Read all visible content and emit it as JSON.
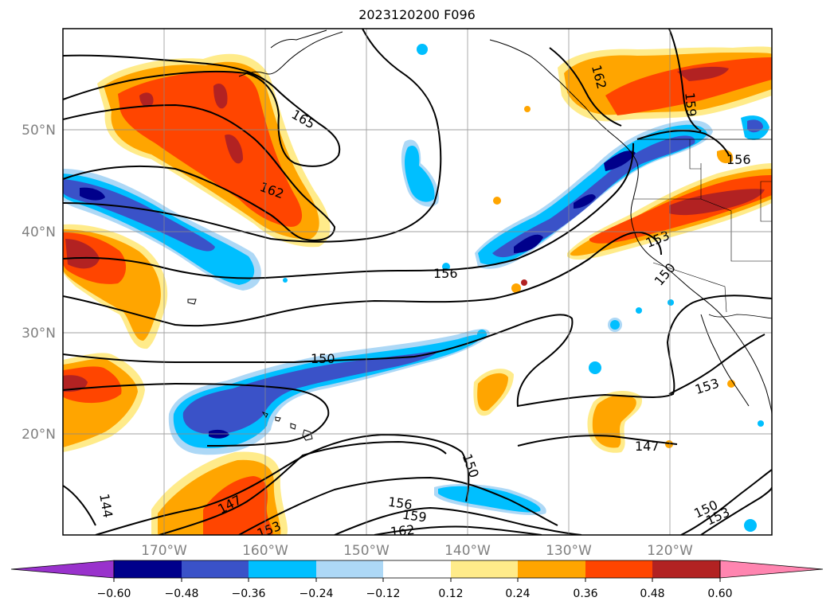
{
  "title": "2023120200 F096",
  "map": {
    "lat_labels": [
      "50°N",
      "40°N",
      "30°N",
      "20°N"
    ],
    "lon_labels": [
      "170°W",
      "160°W",
      "150°W",
      "140°W",
      "130°W",
      "120°W"
    ],
    "contour_labels": [
      "165",
      "162",
      "162",
      "159",
      "156",
      "156",
      "153",
      "150",
      "150",
      "153",
      "147",
      "144",
      "147",
      "153",
      "150",
      "156",
      "159",
      "162",
      "150",
      "153"
    ],
    "colors": {
      "neg_060": "#9932cc",
      "neg_048": "#00008b",
      "neg_036": "#3a52c8",
      "neg_024": "#00bfff",
      "neg_012": "#add8f6",
      "zero": "#ffffff",
      "pos_012": "#ffeb8a",
      "pos_024": "#ffa500",
      "pos_036": "#ff4500",
      "pos_048": "#b22222",
      "pos_060": "#ff85b0"
    }
  },
  "colorbar": {
    "ticks": [
      "−0.60",
      "−0.48",
      "−0.36",
      "−0.24",
      "−0.12",
      "0.12",
      "0.24",
      "0.36",
      "0.48",
      "0.60"
    ]
  }
}
